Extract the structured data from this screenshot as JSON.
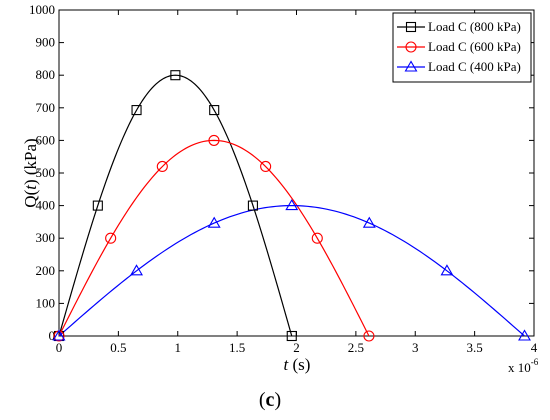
{
  "chart_data": {
    "type": "line",
    "ylabel_prefix": "Q(",
    "ylabel_var": "t",
    "ylabel_suffix": ") (kPa)",
    "xlabel_var": "t",
    "xlabel_suffix": " (s)",
    "x_exponent_base": "x 10",
    "x_exponent_power": "-6",
    "caption_open": "(",
    "caption_letter": "c",
    "caption_close": ")",
    "xlim": [
      0,
      4
    ],
    "ylim": [
      0,
      1000
    ],
    "x_ticks": [
      "0",
      "0.5",
      "1",
      "1.5",
      "2",
      "2.5",
      "3",
      "3.5",
      "4"
    ],
    "y_ticks": [
      "0",
      "100",
      "200",
      "300",
      "400",
      "500",
      "600",
      "700",
      "800",
      "900",
      "1000"
    ],
    "grid": false,
    "legend_position": "top-right",
    "series": [
      {
        "name": "Load C (800 kPa)",
        "color": "#000000",
        "marker": "square",
        "peak": 800,
        "duration": 1.96,
        "x": [
          0,
          0.327,
          0.653,
          0.98,
          1.307,
          1.633,
          1.96
        ],
        "values": [
          0,
          400,
          693,
          800,
          693,
          400,
          0
        ]
      },
      {
        "name": "Load C (600 kPa)",
        "color": "#ff0000",
        "marker": "circle",
        "peak": 600,
        "duration": 2.61,
        "x": [
          0,
          0.435,
          0.87,
          1.305,
          1.74,
          2.175,
          2.61
        ],
        "values": [
          0,
          300,
          520,
          600,
          520,
          300,
          0
        ]
      },
      {
        "name": "Load C (400 kPa)",
        "color": "#0000ff",
        "marker": "triangle",
        "peak": 400,
        "duration": 3.92,
        "x": [
          0,
          0.653,
          1.307,
          1.96,
          2.613,
          3.267,
          3.92
        ],
        "values": [
          0,
          200,
          346,
          400,
          346,
          200,
          0
        ]
      }
    ]
  }
}
